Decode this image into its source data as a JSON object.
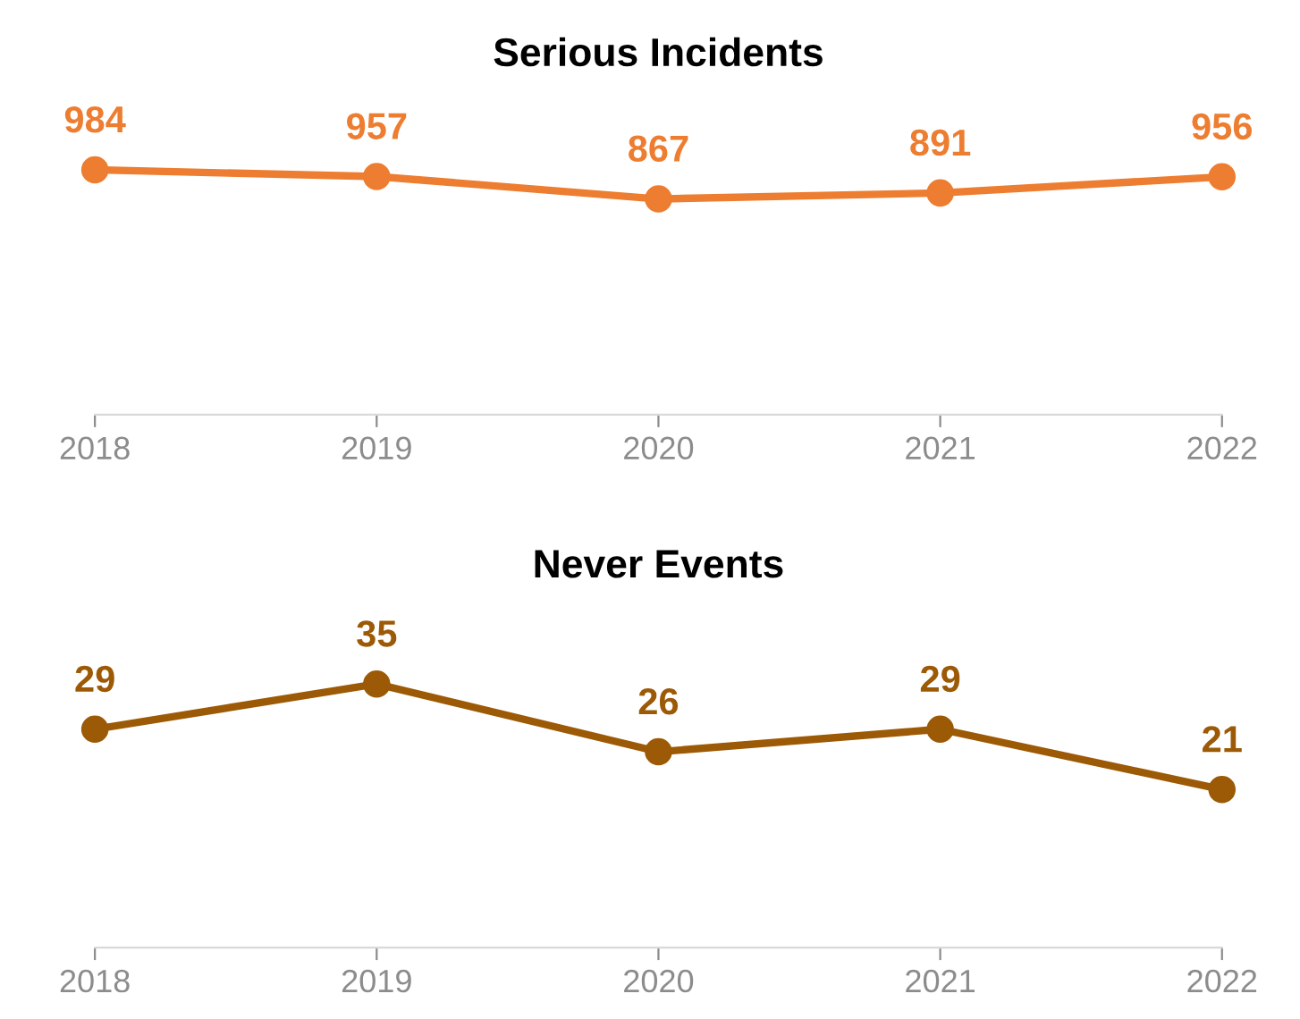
{
  "chart_data": [
    {
      "type": "line",
      "title": "Serious Incidents",
      "categories": [
        "2018",
        "2019",
        "2020",
        "2021",
        "2022"
      ],
      "series": [
        {
          "color": "#ed7d31",
          "values": [
            984,
            957,
            867,
            891,
            956
          ]
        }
      ],
      "tick_labels": "x",
      "data_labels": true,
      "marker": "circle",
      "line_style": "solid",
      "grid": false,
      "legend": false
    },
    {
      "type": "line",
      "title": "Never Events",
      "categories": [
        "2018",
        "2019",
        "2020",
        "2021",
        "2022"
      ],
      "series": [
        {
          "color": "#9c5a06",
          "values": [
            29,
            35,
            26,
            29,
            21
          ]
        }
      ],
      "tick_labels": "x",
      "data_labels": true,
      "marker": "circle",
      "line_style": "solid",
      "grid": false,
      "legend": false
    }
  ]
}
